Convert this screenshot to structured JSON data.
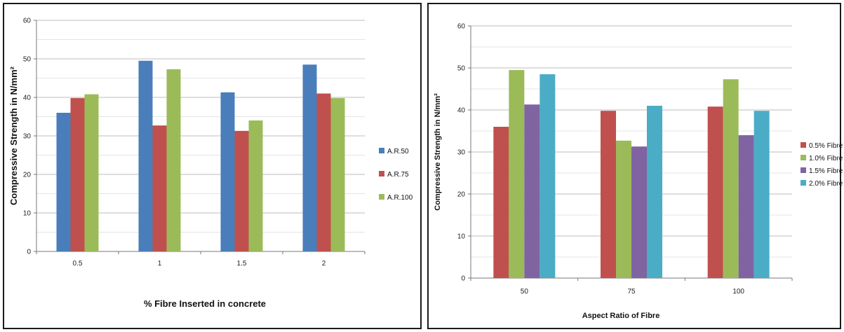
{
  "chart_data": [
    {
      "type": "bar",
      "categories": [
        "0.5",
        "1",
        "1.5",
        "2"
      ],
      "series": [
        {
          "name": "A.R.50",
          "values": [
            36,
            49.5,
            41.3,
            48.5
          ]
        },
        {
          "name": "A.R.75",
          "values": [
            39.8,
            32.7,
            31.3,
            41
          ]
        },
        {
          "name": "A.R.100",
          "values": [
            40.8,
            47.3,
            34,
            39.8
          ]
        }
      ],
      "colors": [
        "#4a7ebb",
        "#c0504d",
        "#9bbb59"
      ],
      "title": "",
      "xlabel": "% Fibre Inserted in concrete",
      "ylabel": "Compressive Strength in N/mm²",
      "ylim": [
        0,
        60
      ],
      "yticks": [
        0,
        10,
        20,
        30,
        40,
        50,
        60
      ],
      "grid": true,
      "legend_position": "right"
    },
    {
      "type": "bar",
      "categories": [
        "50",
        "75",
        "100"
      ],
      "series": [
        {
          "name": "0.5% Fibre",
          "values": [
            36,
            39.8,
            40.8
          ]
        },
        {
          "name": "1.0% Fibre",
          "values": [
            49.5,
            32.7,
            47.3
          ]
        },
        {
          "name": "1.5% Fibre",
          "values": [
            41.3,
            31.3,
            34
          ]
        },
        {
          "name": "2.0% Fibre",
          "values": [
            48.5,
            41,
            39.8
          ]
        }
      ],
      "colors": [
        "#c0504d",
        "#9bbb59",
        "#8064a2",
        "#4bacc6"
      ],
      "title": "",
      "xlabel": "Aspect Ratio of Fibre",
      "ylabel": "Compressive Strength in N/mm²",
      "ylim": [
        0,
        60
      ],
      "yticks": [
        0,
        10,
        20,
        30,
        40,
        50,
        60
      ],
      "grid": true,
      "legend_position": "right"
    }
  ]
}
